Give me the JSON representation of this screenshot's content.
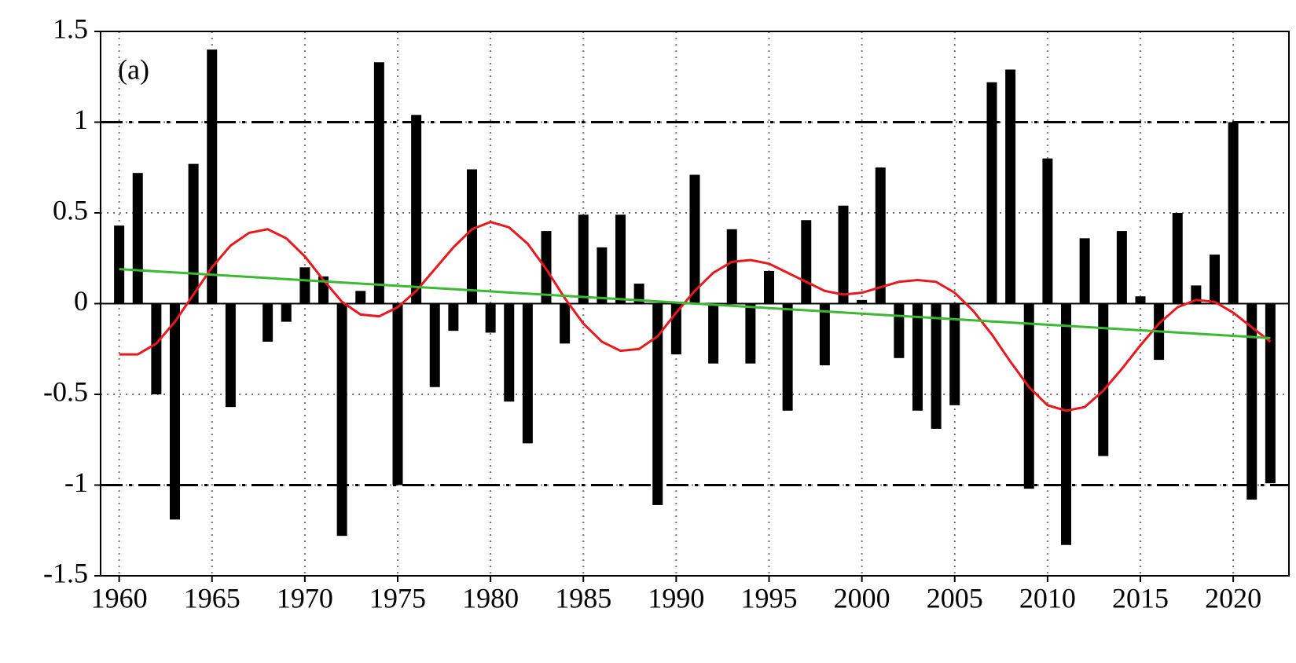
{
  "chart_data": {
    "type": "bar",
    "annotation": "(a)",
    "x": [
      1960,
      1961,
      1962,
      1963,
      1964,
      1965,
      1966,
      1967,
      1968,
      1969,
      1970,
      1971,
      1972,
      1973,
      1974,
      1975,
      1976,
      1977,
      1978,
      1979,
      1980,
      1981,
      1982,
      1983,
      1984,
      1985,
      1986,
      1987,
      1988,
      1989,
      1990,
      1991,
      1992,
      1993,
      1994,
      1995,
      1996,
      1997,
      1998,
      1999,
      2000,
      2001,
      2002,
      2003,
      2004,
      2005,
      2006,
      2007,
      2008,
      2009,
      2010,
      2011,
      2012,
      2013,
      2014,
      2015,
      2016,
      2017,
      2018,
      2019,
      2020,
      2021,
      2022
    ],
    "series": [
      {
        "type": "bar",
        "color": "#000000",
        "values": [
          0.43,
          0.72,
          -0.5,
          -1.19,
          0.77,
          1.4,
          -0.57,
          0,
          -0.21,
          -0.1,
          0.2,
          0.15,
          -1.28,
          0.07,
          1.33,
          -1.0,
          1.04,
          -0.46,
          -0.15,
          0.74,
          -0.16,
          -0.54,
          -0.77,
          0.4,
          -0.22,
          0.49,
          0.31,
          0.49,
          0.11,
          -1.11,
          -0.28,
          0.71,
          -0.33,
          0.41,
          -0.33,
          0.18,
          -0.59,
          0.46,
          -0.34,
          0.54,
          0.02,
          0.75,
          -0.3,
          -0.59,
          -0.69,
          -0.56,
          0,
          1.22,
          1.29,
          -1.02,
          0.8,
          -1.33,
          0.36,
          -0.84,
          0.4,
          0.04,
          -0.31,
          0.5,
          0.1,
          0.27,
          1.0,
          -1.08,
          -0.99
        ]
      },
      {
        "type": "line",
        "color": "#e8191e",
        "values": [
          -0.28,
          -0.28,
          -0.22,
          -0.1,
          0.05,
          0.2,
          0.32,
          0.39,
          0.41,
          0.36,
          0.26,
          0.13,
          0.01,
          -0.06,
          -0.07,
          -0.02,
          0.07,
          0.19,
          0.31,
          0.41,
          0.45,
          0.42,
          0.33,
          0.19,
          0.03,
          -0.11,
          -0.21,
          -0.26,
          -0.25,
          -0.18,
          -0.05,
          0.07,
          0.17,
          0.23,
          0.24,
          0.22,
          0.17,
          0.12,
          0.07,
          0.05,
          0.06,
          0.09,
          0.12,
          0.13,
          0.12,
          0.06,
          -0.04,
          -0.17,
          -0.32,
          -0.46,
          -0.56,
          -0.59,
          -0.57,
          -0.48,
          -0.36,
          -0.23,
          -0.11,
          -0.02,
          0.02,
          0.01,
          -0.05,
          -0.13,
          -0.21
        ]
      },
      {
        "type": "line",
        "color": "#3cb832",
        "x": [
          1960,
          2022
        ],
        "values": [
          0.19,
          -0.19
        ]
      }
    ],
    "hlines": [
      1,
      -1
    ],
    "xlim": [
      1959,
      2023
    ],
    "ylim": [
      -1.5,
      1.5
    ],
    "xticks": [
      1960,
      1965,
      1970,
      1975,
      1980,
      1985,
      1990,
      1995,
      2000,
      2005,
      2010,
      2015,
      2020
    ],
    "yticks": [
      1.5,
      1,
      0.5,
      0,
      -0.5,
      -1,
      -1.5
    ],
    "grid": true
  }
}
